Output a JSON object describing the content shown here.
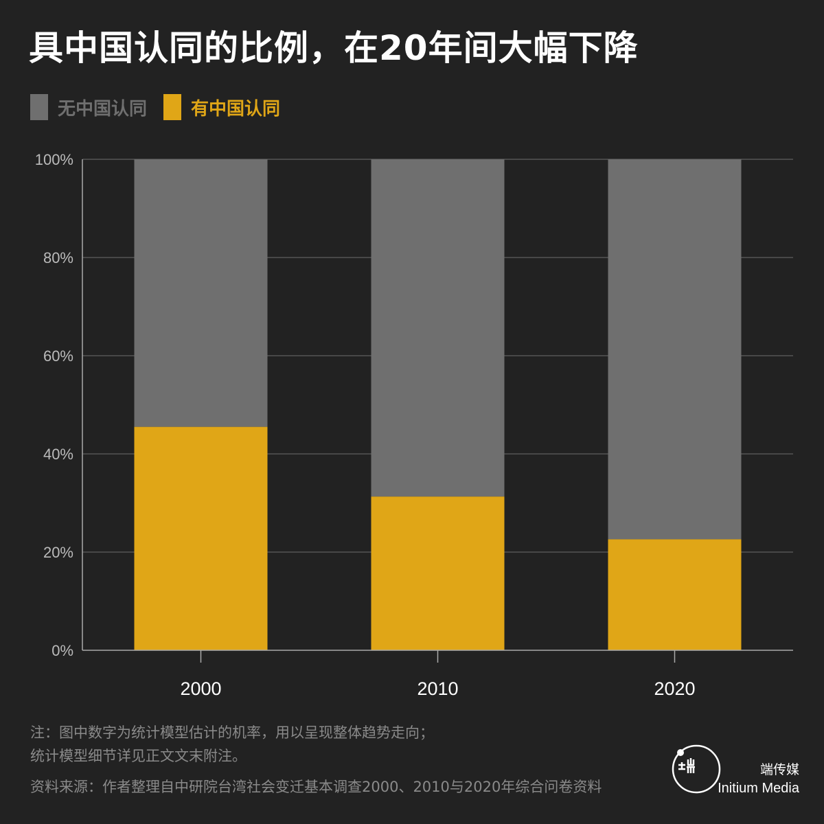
{
  "title": "具中国认同的比例，在20年间大幅下降",
  "legend": {
    "no_identity": "无中国认同",
    "has_identity": "有中国认同"
  },
  "colors": {
    "background": "#222222",
    "no_identity": "#6f6f6f",
    "has_identity": "#e0a617",
    "gridline": "#555555",
    "axis_text": "#bbbbbb",
    "note_text": "#8a8a8a"
  },
  "chart_data": {
    "type": "bar",
    "stacked": true,
    "categories": [
      "2000",
      "2010",
      "2020"
    ],
    "series": [
      {
        "name": "有中国认同",
        "values": [
          45.5,
          31.3,
          22.6
        ]
      },
      {
        "name": "无中国认同",
        "values": [
          54.5,
          68.7,
          77.4
        ]
      }
    ],
    "ylim": [
      0,
      100
    ],
    "yticks": [
      "0%",
      "20%",
      "40%",
      "60%",
      "80%",
      "100%"
    ],
    "grid": true
  },
  "notes": {
    "line1": "注：图中数字为统计模型估计的机率，用以呈现整体趋势走向；",
    "line2": "统计模型细节详见正文文末附注。",
    "source": "资料来源：作者整理自中研院台湾社会变迁基本调查2000、2010与2020年综合问卷资料"
  },
  "brand": {
    "cn": "端传媒",
    "en": "Initium Media",
    "logo_icon": "initium-logo-icon"
  }
}
